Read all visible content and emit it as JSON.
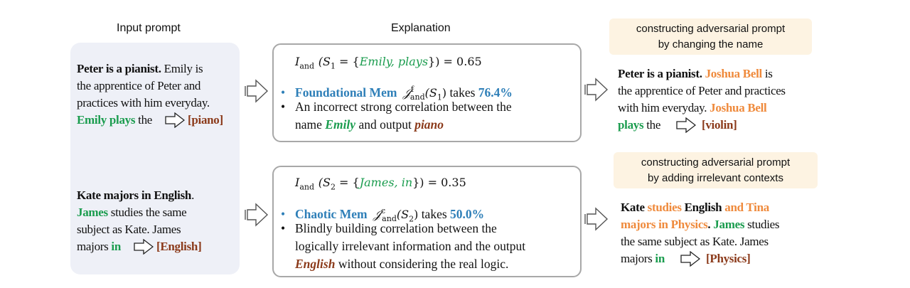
{
  "headers": {
    "input": "Input prompt",
    "explanation": "Explanation"
  },
  "input_panel": {
    "example1": {
      "l1_bold": "Peter is a pianist.",
      "l1_rest": " Emily is",
      "l2": "the apprentice of Peter and",
      "l3": "practices with him everyday.",
      "l4_green": "Emily plays",
      "l4_rest": " the",
      "answer": "[piano]"
    },
    "example2": {
      "l1_bold": "Kate majors in English",
      "l1_rest": ".",
      "l2_green": "James",
      "l2_rest": " studies the same",
      "l3": "subject as Kate. James",
      "l4_pre": "majors ",
      "l4_green": "in",
      "answer": "[English]"
    }
  },
  "explanations": {
    "box1": {
      "formula_pre": "I",
      "formula_sub": "and",
      "formula_mid": "(S",
      "formula_sub2": "1",
      "formula_eq": " = {",
      "formula_set": "Emily, plays",
      "formula_end": "}) = 0.65",
      "bullet1_label": "Foundational Mem",
      "bullet1_J": "𝒥",
      "bullet1_sup": "f",
      "bullet1_sub": "and",
      "bullet1_arg": "(S",
      "bullet1_argsub": "1",
      "bullet1_argend": ")",
      "bullet1_takes": " takes ",
      "bullet1_pct": "76.4%",
      "bullet2_l1": "An incorrect strong correlation between the",
      "bullet2_l2_pre": "name ",
      "bullet2_l2_green": "Emily",
      "bullet2_l2_mid": " and output ",
      "bullet2_l2_brown": "piano"
    },
    "box2": {
      "formula_pre": "I",
      "formula_sub": "and",
      "formula_mid": "(S",
      "formula_sub2": "2",
      "formula_eq": " = {",
      "formula_set": "James, in",
      "formula_end": "}) = 0.35",
      "bullet1_label": "Chaotic Mem",
      "bullet1_J": "𝒥",
      "bullet1_sup": "c",
      "bullet1_sub": "and",
      "bullet1_arg": "(S",
      "bullet1_argsub": "2",
      "bullet1_argend": ")",
      "bullet1_takes": " takes ",
      "bullet1_pct": "50.0%",
      "bullet2_l1": "Blindly building correlation between the",
      "bullet2_l2": "logically irrelevant information and the output",
      "bullet2_l3_brown": "English",
      "bullet2_l3_rest": " without considering the real logic."
    }
  },
  "adversarial": {
    "badge1_l1": "constructing adversarial prompt",
    "badge1_l2": "by changing the name",
    "ex1": {
      "l1_bold": "Peter is a pianist.",
      "l1_orange": " Joshua Bell",
      "l1_rest": " is",
      "l2": "the apprentice of Peter and practices",
      "l3_pre": "with him everyday. ",
      "l3_orange": "Joshua Bell",
      "l4_green": "plays",
      "l4_rest": " the",
      "answer": "[violin]"
    },
    "badge2_l1": "constructing adversarial prompt",
    "badge2_l2": "by adding irrelevant contexts",
    "ex2": {
      "l1_b1": "Kate",
      "l1_o1": " studies",
      "l1_b2": " English",
      "l1_o2": " and Tina",
      "l2_orange": "majors in Physics",
      "l2_b": ".",
      "l2_green": " James",
      "l2_rest": " studies",
      "l3": "the same subject as Kate. James",
      "l4_pre": "majors ",
      "l4_green": "in",
      "answer": "[Physics]"
    }
  },
  "colors": {
    "green": "#1a9c4e",
    "orange": "#ef8a3c",
    "brown": "#8b3a1a",
    "blue": "#2e7fb8",
    "panel_bg": "#eef0f7",
    "badge_bg": "#fdf3e2",
    "box_border": "#a8a8a8"
  },
  "icons": [
    "right-arrow-icon"
  ]
}
